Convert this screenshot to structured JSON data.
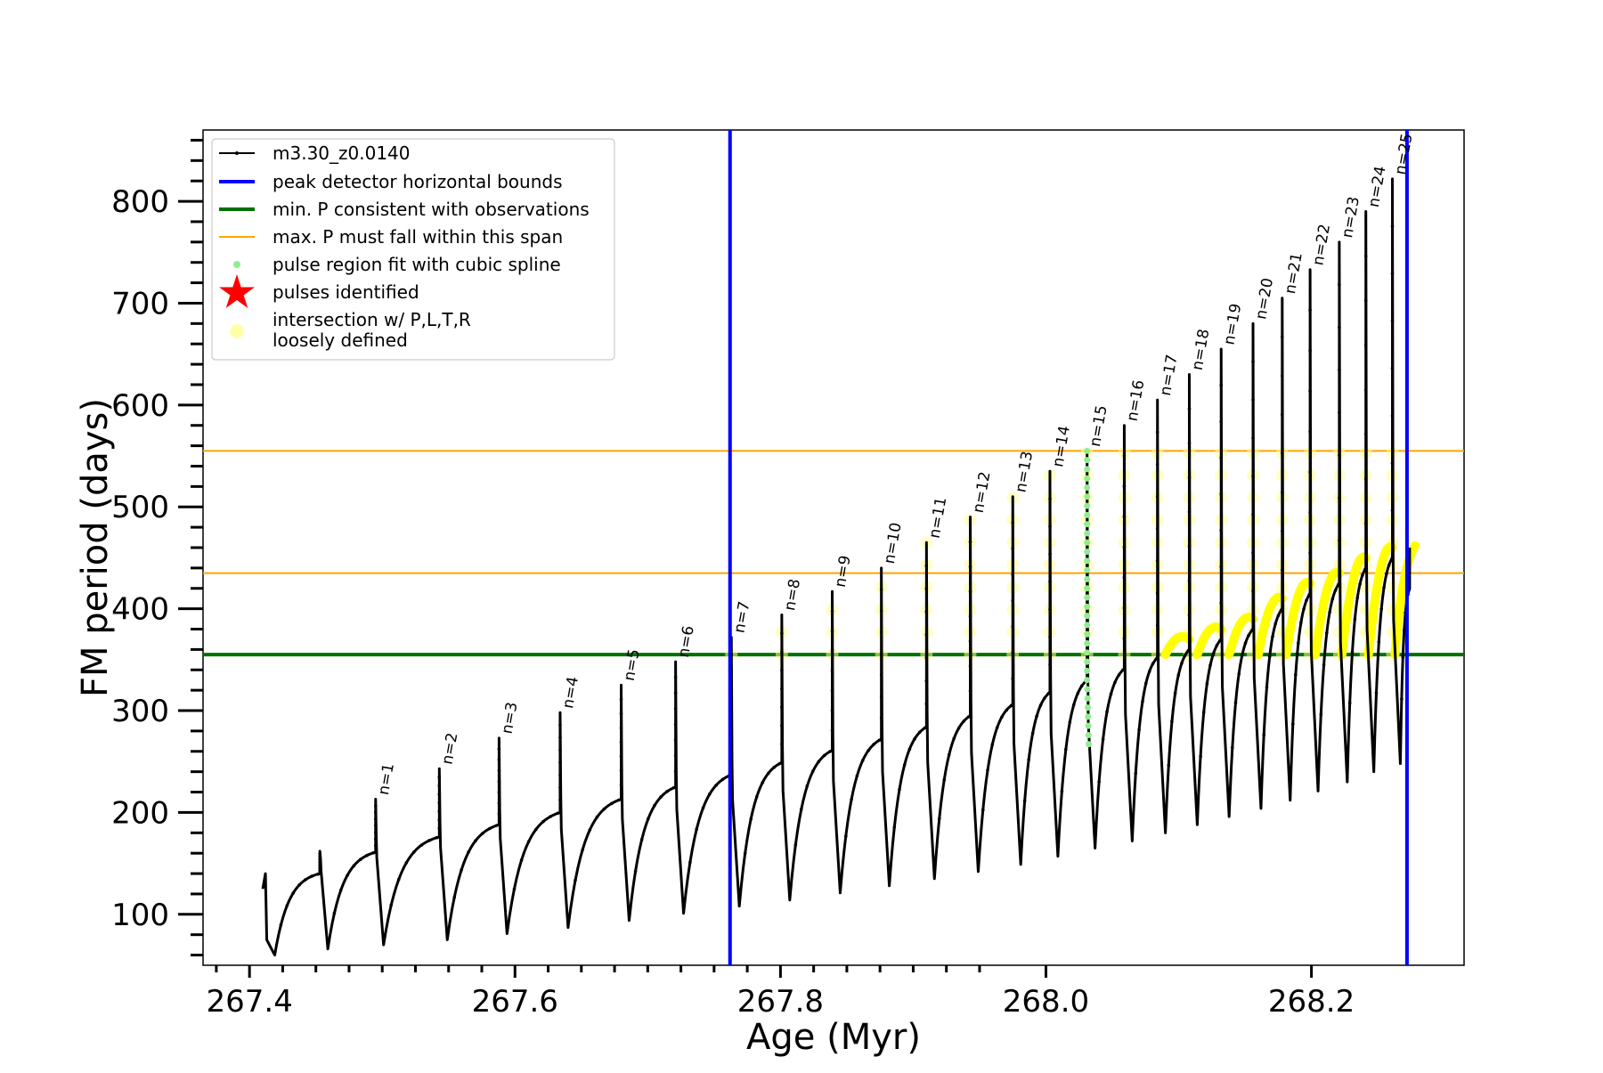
{
  "chart_data": {
    "type": "line",
    "title": "",
    "xlabel": "Age (Myr)",
    "ylabel": "FM period (days)",
    "xlim": [
      267.365,
      268.315
    ],
    "ylim": [
      50,
      870
    ],
    "x_ticks": [
      267.4,
      267.6,
      267.8,
      268.0,
      268.2
    ],
    "x_tick_labels": [
      "267.4",
      "267.6",
      "267.8",
      "268.0",
      "268.2"
    ],
    "y_ticks": [
      100,
      200,
      300,
      400,
      500,
      600,
      700,
      800
    ],
    "y_tick_labels": [
      "100",
      "200",
      "300",
      "400",
      "500",
      "600",
      "700",
      "800"
    ],
    "grid": false,
    "legend_position": "top-left",
    "legend": [
      {
        "label": "m3.30_z0.0140",
        "marker": "line-dot",
        "color": "#000000"
      },
      {
        "label": "peak detector horizontal bounds",
        "marker": "line",
        "color": "#0000ff"
      },
      {
        "label": "min. P consistent with observations",
        "marker": "line",
        "color": "#007000"
      },
      {
        "label": "max. P must fall within this span",
        "marker": "line",
        "color": "#ffa500"
      },
      {
        "label": "pulse region fit with cubic spline",
        "marker": "dot",
        "color": "#90ee90"
      },
      {
        "label": "pulses identified",
        "marker": "star",
        "color": "#ff0000"
      },
      {
        "label": "intersection w/ P,L,T,R",
        "label2": "loosely defined",
        "marker": "circle",
        "color": "#ffffaa"
      }
    ],
    "vertical_lines": [
      {
        "x": 267.762,
        "color": "#0000ff",
        "name": "peak detector horizontal bounds"
      },
      {
        "x": 268.272,
        "color": "#0000ff",
        "name": "peak detector horizontal bounds"
      }
    ],
    "horizontal_lines": [
      {
        "y": 355,
        "color": "#007000",
        "name": "min. P consistent with observations"
      },
      {
        "y": 555,
        "color": "#ffa500",
        "name": "max. P must fall within this span"
      },
      {
        "y": 435,
        "color": "#ffa500",
        "name": "max. P must fall within this span"
      }
    ],
    "series": [
      {
        "name": "m3.30_z0.0140",
        "color": "#000000",
        "start_x": 267.41,
        "start_min": 60,
        "pulses": [
          {
            "n": "",
            "x": 267.453,
            "peak": 162,
            "pre": 140,
            "min": 66
          },
          {
            "n": "n=1",
            "x": 267.495,
            "peak": 213,
            "pre": 161,
            "min": 70
          },
          {
            "n": "n=2",
            "x": 267.543,
            "peak": 243,
            "pre": 176,
            "min": 75
          },
          {
            "n": "n=3",
            "x": 267.588,
            "peak": 273,
            "pre": 188,
            "min": 81
          },
          {
            "n": "n=4",
            "x": 267.634,
            "peak": 298,
            "pre": 200,
            "min": 87
          },
          {
            "n": "n=5",
            "x": 267.68,
            "peak": 325,
            "pre": 213,
            "min": 94
          },
          {
            "n": "n=6",
            "x": 267.721,
            "peak": 348,
            "pre": 225,
            "min": 101
          },
          {
            "n": "n=7",
            "x": 267.763,
            "peak": 372,
            "pre": 237,
            "min": 108
          },
          {
            "n": "n=8",
            "x": 267.801,
            "peak": 394,
            "pre": 249,
            "min": 114
          },
          {
            "n": "n=9",
            "x": 267.839,
            "peak": 417,
            "pre": 261,
            "min": 121
          },
          {
            "n": "n=10",
            "x": 267.876,
            "peak": 440,
            "pre": 272,
            "min": 128
          },
          {
            "n": "n=11",
            "x": 267.91,
            "peak": 465,
            "pre": 284,
            "min": 135
          },
          {
            "n": "n=12",
            "x": 267.943,
            "peak": 490,
            "pre": 295,
            "min": 142
          },
          {
            "n": "n=13",
            "x": 267.975,
            "peak": 510,
            "pre": 306,
            "min": 149
          },
          {
            "n": "n=14",
            "x": 268.003,
            "peak": 535,
            "pre": 318,
            "min": 157
          },
          {
            "n": "n=15",
            "x": 268.031,
            "peak": 555,
            "pre": 330,
            "min": 165
          },
          {
            "n": "n=16",
            "x": 268.059,
            "peak": 580,
            "pre": 341,
            "min": 172
          },
          {
            "n": "n=17",
            "x": 268.084,
            "peak": 605,
            "pre": 352,
            "min": 180
          },
          {
            "n": "n=18",
            "x": 268.108,
            "peak": 630,
            "pre": 360,
            "min": 188
          },
          {
            "n": "n=19",
            "x": 268.132,
            "peak": 655,
            "pre": 370,
            "min": 196
          },
          {
            "n": "n=20",
            "x": 268.156,
            "peak": 680,
            "pre": 380,
            "min": 204
          },
          {
            "n": "n=21",
            "x": 268.178,
            "peak": 705,
            "pre": 400,
            "min": 212
          },
          {
            "n": "n=22",
            "x": 268.199,
            "peak": 733,
            "pre": 415,
            "min": 221
          },
          {
            "n": "n=23",
            "x": 268.221,
            "peak": 760,
            "pre": 425,
            "min": 230
          },
          {
            "n": "n=24",
            "x": 268.241,
            "peak": 790,
            "pre": 440,
            "min": 240
          },
          {
            "n": "n=25",
            "x": 268.261,
            "peak": 822,
            "pre": 450,
            "min": 248
          }
        ],
        "end_x": 268.274,
        "end_value": 460
      }
    ],
    "spline_region": {
      "x": 268.031,
      "y_from": 330,
      "y_to": 555,
      "color": "#90ee90"
    },
    "highlight_color": "#ffff00"
  }
}
